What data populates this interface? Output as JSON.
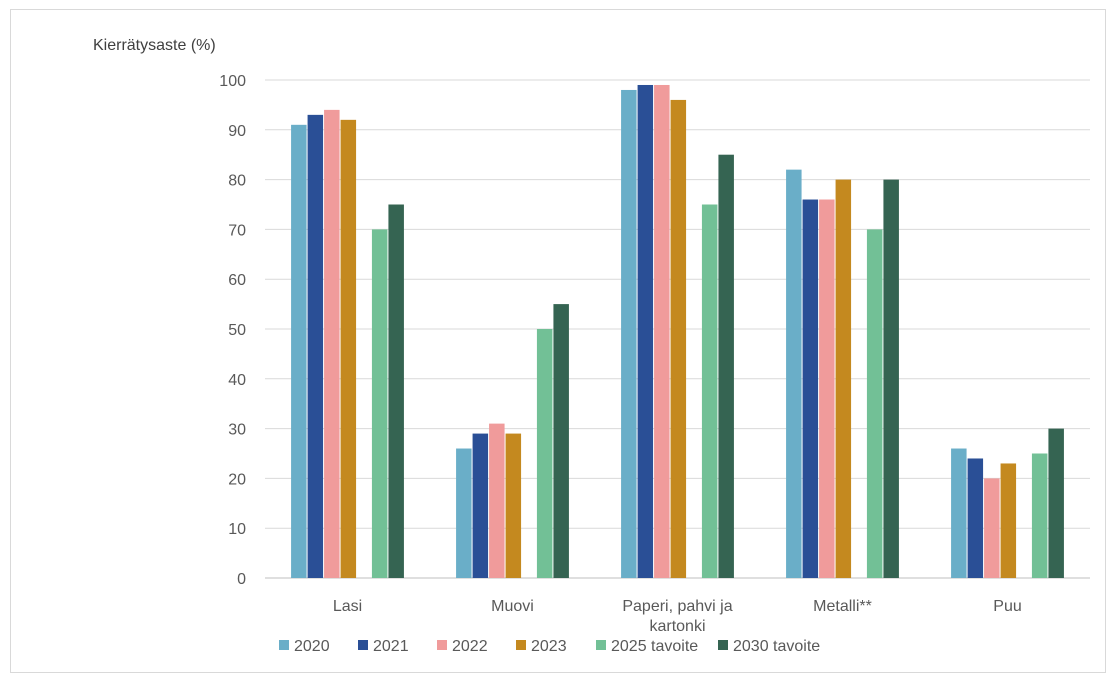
{
  "chart_data": {
    "type": "bar",
    "title": "",
    "ylabel": "Kierrätysaste (%)",
    "xlabel": "",
    "ylim": [
      0,
      100
    ],
    "yticks": [
      0,
      10,
      20,
      30,
      40,
      50,
      60,
      70,
      80,
      90,
      100
    ],
    "grid": true,
    "legend_position": "bottom",
    "categories": [
      [
        "Lasi"
      ],
      [
        "Muovi"
      ],
      [
        "Paperi, pahvi ja",
        "kartonki"
      ],
      [
        "Metalli**"
      ],
      [
        "Puu"
      ]
    ],
    "series": [
      {
        "name": "2020",
        "color": "#6aaec8",
        "values": [
          91,
          26,
          98,
          82,
          26
        ]
      },
      {
        "name": "2021",
        "color": "#2a4f96",
        "values": [
          93,
          29,
          99,
          76,
          24
        ]
      },
      {
        "name": "2022",
        "color": "#f09b9b",
        "values": [
          94,
          31,
          99,
          76,
          20
        ]
      },
      {
        "name": "2023",
        "color": "#c4891f",
        "values": [
          92,
          29,
          96,
          80,
          23
        ]
      },
      {
        "name": "2025 tavoite",
        "color": "#72c096",
        "values": [
          70,
          50,
          75,
          70,
          25
        ]
      },
      {
        "name": "2030 tavoite",
        "color": "#356452",
        "values": [
          75,
          55,
          85,
          80,
          30
        ]
      }
    ]
  }
}
